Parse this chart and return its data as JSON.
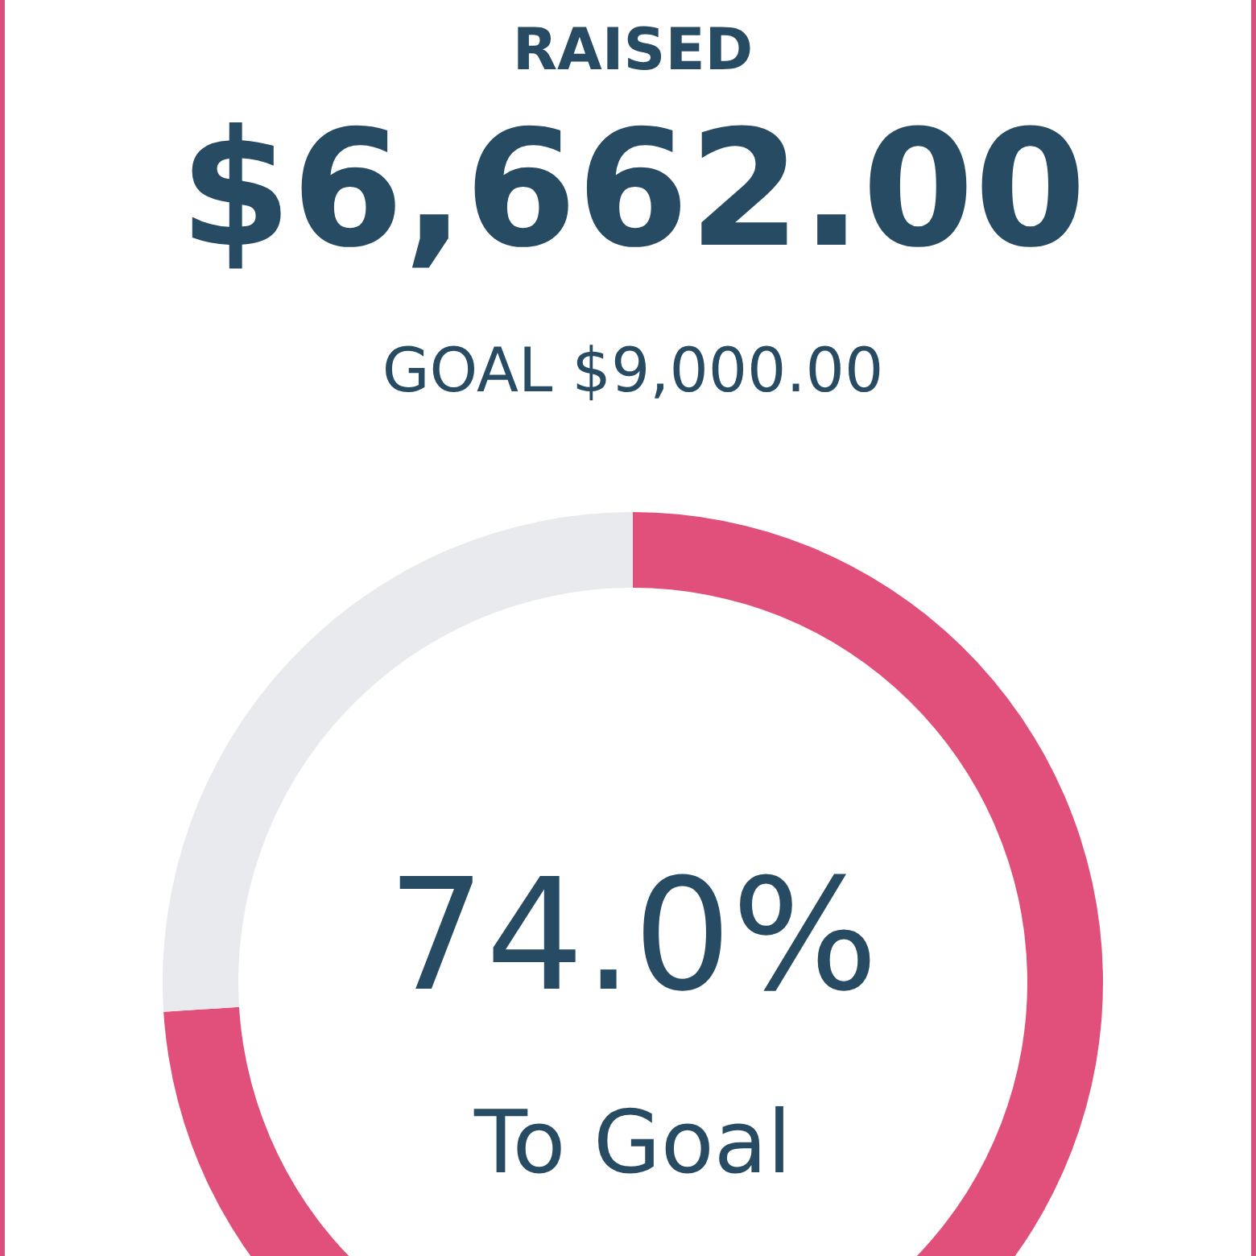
{
  "chart_data": {
    "type": "donut",
    "title": "RAISED",
    "subtitle": "$6,662.00",
    "annotations": [
      "GOAL $9,000.00",
      "74.0%",
      "To Goal"
    ],
    "categories": [
      null,
      null
    ],
    "values": [
      74,
      26
    ],
    "colors": [
      "#e0507a",
      "#e9eaee"
    ]
  }
}
